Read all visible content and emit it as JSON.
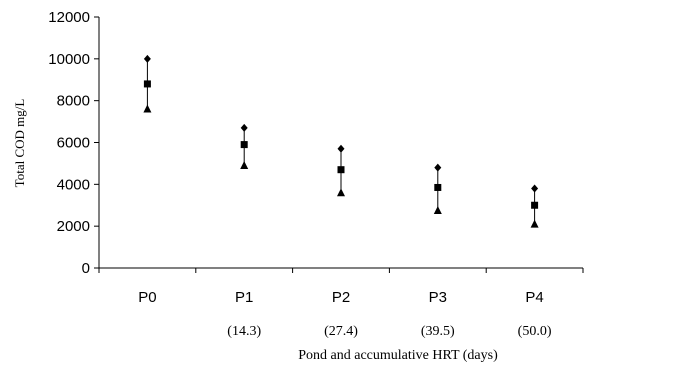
{
  "chart_data": {
    "type": "scatter",
    "title": "",
    "ylabel": "Total COD mg/L",
    "xlabel": "Pond and accumulative HRT (days)",
    "ylim": [
      0,
      12000
    ],
    "yticks": [
      0,
      2000,
      4000,
      6000,
      8000,
      10000,
      12000
    ],
    "grid": false,
    "categories": [
      "P0",
      "P1",
      "P2",
      "P3",
      "P4"
    ],
    "hrt_labels": [
      "",
      "(14.3)",
      "(27.4)",
      "(39.5)",
      "(50.0)"
    ],
    "series": [
      {
        "marker": "diamond",
        "values": [
          10000,
          6700,
          5700,
          4800,
          3800
        ]
      },
      {
        "marker": "square",
        "values": [
          8800,
          5900,
          4700,
          3850,
          3000
        ]
      },
      {
        "marker": "triangle",
        "values": [
          7600,
          4900,
          3600,
          2750,
          2100
        ]
      }
    ]
  }
}
